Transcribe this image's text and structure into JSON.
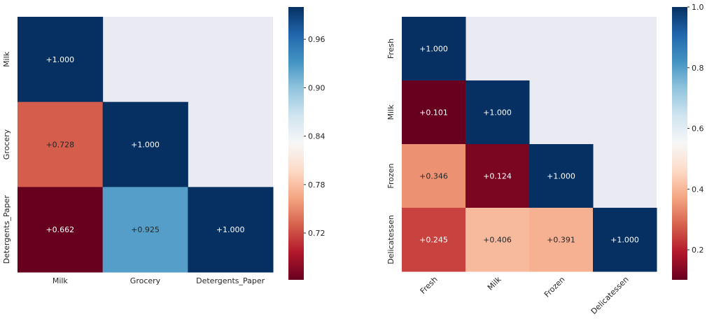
{
  "chart_data": [
    {
      "type": "heatmap",
      "labels": [
        "Milk",
        "Grocery",
        "Detergents_Paper"
      ],
      "x_tick_labels": [
        "Milk",
        "Grocery",
        "Detergents_Paper"
      ],
      "y_tick_labels": [
        "Milk",
        "Grocery",
        "Detergents_Paper"
      ],
      "values": [
        [
          1.0,
          null,
          null
        ],
        [
          0.728,
          1.0,
          null
        ],
        [
          0.662,
          0.925,
          1.0
        ]
      ],
      "cell_labels": [
        [
          "+1.000",
          "",
          ""
        ],
        [
          "+0.728",
          "+1.000",
          ""
        ],
        [
          "+0.662",
          "+0.925",
          "+1.000"
        ]
      ],
      "colorbar": {
        "vmin": 0.662,
        "vmax": 1.0,
        "ticks": [
          0.72,
          0.78,
          0.84,
          0.9,
          0.96
        ],
        "tick_labels": [
          "0.72",
          "0.78",
          "0.84",
          "0.90",
          "0.96"
        ]
      },
      "colormap": "RdBu",
      "masked_color": "#eaeaf2",
      "x_tick_rotation": 0
    },
    {
      "type": "heatmap",
      "labels": [
        "Fresh",
        "Milk",
        "Frozen",
        "Delicatessen"
      ],
      "x_tick_labels": [
        "Fresh",
        "Milk",
        "Frozen",
        "Delicatessen"
      ],
      "y_tick_labels": [
        "Fresh",
        "Milk",
        "Frozen",
        "Delicatessen"
      ],
      "values": [
        [
          1.0,
          null,
          null,
          null
        ],
        [
          0.101,
          1.0,
          null,
          null
        ],
        [
          0.346,
          0.124,
          1.0,
          null
        ],
        [
          0.245,
          0.406,
          0.391,
          1.0
        ]
      ],
      "cell_labels": [
        [
          "+1.000",
          "",
          "",
          ""
        ],
        [
          "+0.101",
          "+1.000",
          "",
          ""
        ],
        [
          "+0.346",
          "+0.124",
          "+1.000",
          ""
        ],
        [
          "+0.245",
          "+0.406",
          "+0.391",
          "+1.000"
        ]
      ],
      "colorbar": {
        "vmin": 0.101,
        "vmax": 1.0,
        "ticks": [
          0.2,
          0.4,
          0.6,
          0.8,
          1.0
        ],
        "tick_labels": [
          "0.2",
          "0.4",
          "0.6",
          "0.8",
          "1.0"
        ]
      },
      "colormap": "RdBu",
      "masked_color": "#eaeaf2",
      "x_tick_rotation": -45
    }
  ]
}
